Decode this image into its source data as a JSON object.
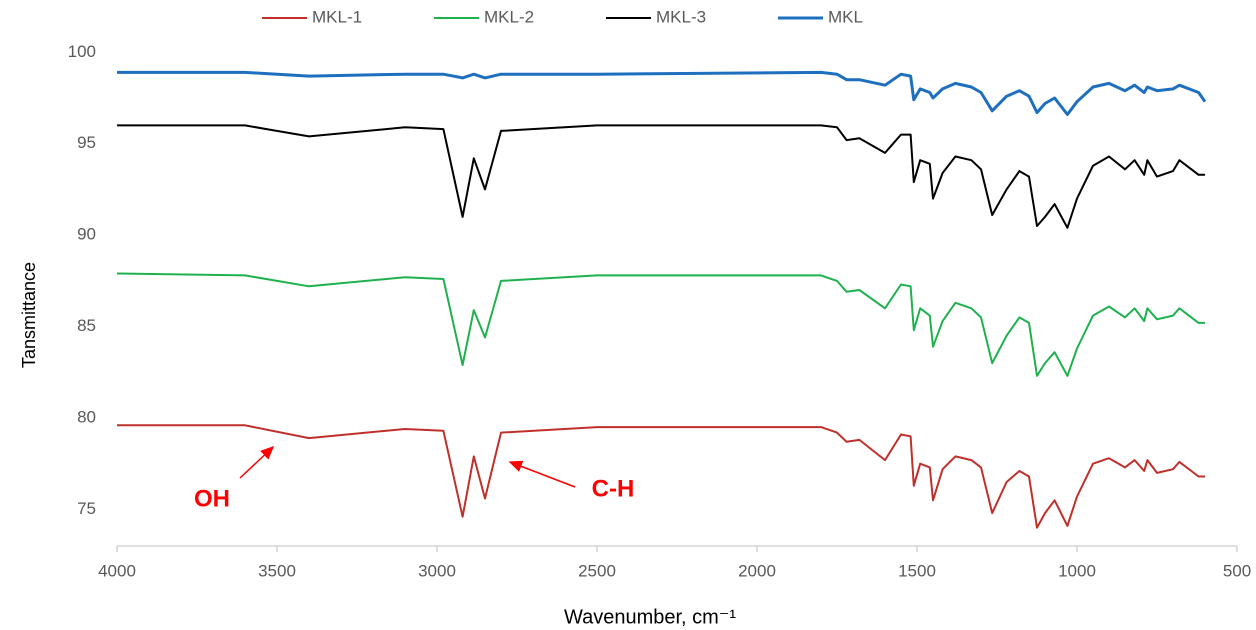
{
  "chart_data": {
    "type": "line",
    "x_label": "Wavenumber, cm⁻¹",
    "y_label": "Tansmittance",
    "x": [
      4000,
      3600,
      3400,
      3100,
      2980,
      2920,
      2885,
      2850,
      2800,
      2500,
      1800,
      1750,
      1720,
      1680,
      1600,
      1550,
      1520,
      1510,
      1490,
      1460,
      1450,
      1420,
      1380,
      1330,
      1300,
      1265,
      1220,
      1180,
      1150,
      1125,
      1100,
      1070,
      1030,
      1000,
      950,
      900,
      850,
      820,
      790,
      780,
      750,
      700,
      680,
      620,
      600
    ],
    "series": [
      {
        "name": "MKL-1",
        "color": "#c0302b",
        "values": [
          79.6,
          79.6,
          78.9,
          79.4,
          79.3,
          74.6,
          77.9,
          75.6,
          79.2,
          79.5,
          79.5,
          79.2,
          78.7,
          78.8,
          77.7,
          79.1,
          79.0,
          76.3,
          77.5,
          77.3,
          75.5,
          77.2,
          77.9,
          77.7,
          77.3,
          74.8,
          76.5,
          77.1,
          76.8,
          74.0,
          74.8,
          75.5,
          74.1,
          75.7,
          77.5,
          77.8,
          77.3,
          77.7,
          77.1,
          77.7,
          77.0,
          77.2,
          77.6,
          76.8,
          76.8
        ]
      },
      {
        "name": "MKL-2",
        "color": "#1fb14e",
        "values": [
          87.9,
          87.8,
          87.2,
          87.7,
          87.6,
          82.9,
          85.9,
          84.4,
          87.5,
          87.8,
          87.8,
          87.5,
          86.9,
          87.0,
          86.0,
          87.3,
          87.2,
          84.8,
          86.0,
          85.6,
          83.9,
          85.3,
          86.3,
          86.0,
          85.5,
          83.0,
          84.5,
          85.5,
          85.2,
          82.3,
          83.0,
          83.6,
          82.3,
          83.8,
          85.6,
          86.1,
          85.5,
          86.0,
          85.3,
          86.0,
          85.4,
          85.6,
          86.0,
          85.2,
          85.2
        ]
      },
      {
        "name": "MKL-3",
        "color": "#000000",
        "values": [
          96.0,
          96.0,
          95.4,
          95.9,
          95.8,
          91.0,
          94.2,
          92.5,
          95.7,
          96.0,
          96.0,
          95.9,
          95.2,
          95.3,
          94.5,
          95.5,
          95.5,
          92.9,
          94.1,
          93.9,
          92.0,
          93.4,
          94.3,
          94.1,
          93.6,
          91.1,
          92.5,
          93.5,
          93.2,
          90.5,
          91.0,
          91.7,
          90.4,
          92.0,
          93.8,
          94.3,
          93.6,
          94.1,
          93.3,
          94.1,
          93.2,
          93.5,
          94.1,
          93.3,
          93.3
        ]
      },
      {
        "name": "MKL",
        "color": "#1f6fbf",
        "values": [
          98.9,
          98.9,
          98.7,
          98.8,
          98.8,
          98.6,
          98.8,
          98.6,
          98.8,
          98.8,
          98.9,
          98.8,
          98.5,
          98.5,
          98.2,
          98.8,
          98.7,
          97.4,
          98.0,
          97.8,
          97.5,
          98.0,
          98.3,
          98.1,
          97.8,
          96.8,
          97.6,
          97.9,
          97.6,
          96.7,
          97.2,
          97.5,
          96.6,
          97.3,
          98.1,
          98.3,
          97.9,
          98.2,
          97.8,
          98.1,
          97.9,
          98.0,
          98.2,
          97.8,
          97.3
        ]
      }
    ],
    "xlim": [
      4000,
      500
    ],
    "xticks": [
      4000,
      3500,
      3000,
      2500,
      2000,
      1500,
      1000,
      500
    ],
    "ylim": [
      73,
      101
    ],
    "yticks": [
      75,
      80,
      85,
      90,
      95,
      100
    ],
    "grid": false,
    "annotations": [
      "OH",
      "C-H"
    ]
  }
}
